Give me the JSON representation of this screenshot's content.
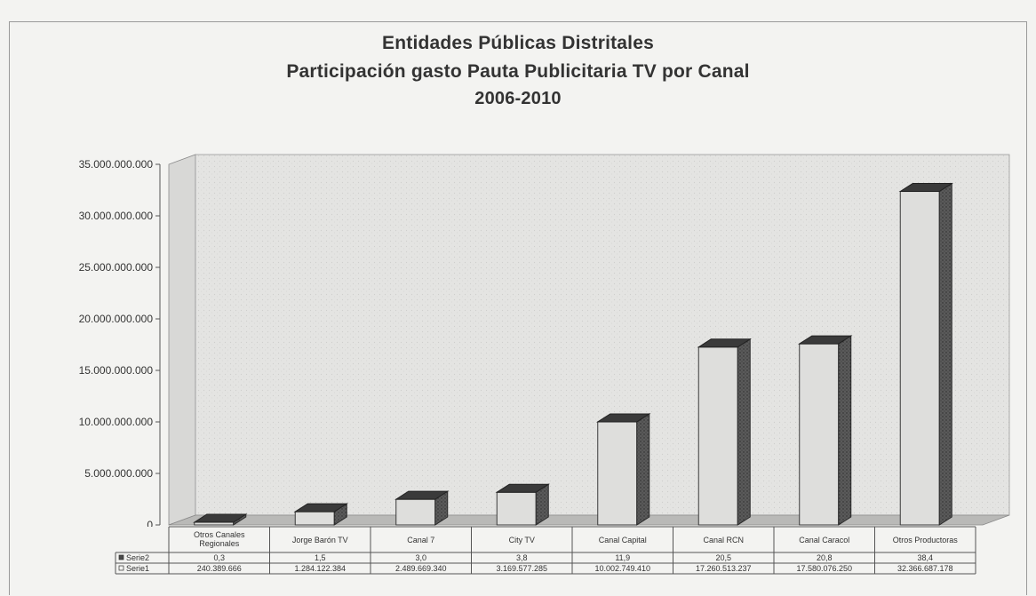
{
  "chart_data": {
    "type": "bar",
    "title": [
      "Entidades Públicas Distritales",
      "Participación gasto Pauta Publicitaria TV por Canal",
      "2006-2010"
    ],
    "categories": [
      "Otros Canales Regionales",
      "Jorge Barón TV",
      "Canal 7",
      "City TV",
      "Canal Capital",
      "Canal RCN",
      "Canal Caracol",
      "Otros Productoras"
    ],
    "category_lines": [
      [
        "Otros Canales",
        "Regionales"
      ],
      [
        "Jorge Barón TV"
      ],
      [
        "Canal 7"
      ],
      [
        "City TV"
      ],
      [
        "Canal Capital"
      ],
      [
        "Canal RCN"
      ],
      [
        "Canal Caracol"
      ],
      [
        "Otros Productoras"
      ]
    ],
    "series": [
      {
        "name": "Serie2",
        "labels": [
          "0,3",
          "1,5",
          "3,0",
          "3,8",
          "11,9",
          "20,5",
          "20,8",
          "38,4"
        ]
      },
      {
        "name": "Serie1",
        "values": [
          240389666,
          1284122384,
          2489669340,
          3169577285,
          10002749410,
          17260513237,
          17580076250,
          32366687178
        ],
        "labels": [
          "240.389.666",
          "1.284.122.384",
          "2.489.669.340",
          "3.169.577.285",
          "10.002.749.410",
          "17.260.513.237",
          "17.580.076.250",
          "32.366.687.178"
        ]
      }
    ],
    "ylim": [
      0,
      35000000000
    ],
    "yticks": [
      0,
      5000000000,
      10000000000,
      15000000000,
      20000000000,
      25000000000,
      30000000000,
      35000000000
    ],
    "ytick_labels": [
      "0",
      "5.000.000.000",
      "10.000.000.000",
      "15.000.000.000",
      "20.000.000.000",
      "25.000.000.000",
      "30.000.000.000",
      "35.000.000.000"
    ],
    "grid": false,
    "legend": "data-table"
  }
}
